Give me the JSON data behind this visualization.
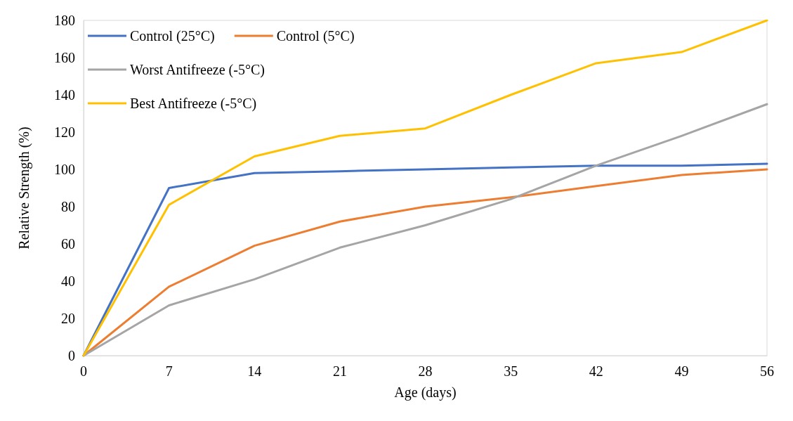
{
  "chart_data": {
    "type": "line",
    "xlabel": "Age (days)",
    "ylabel": "Relative Strength (%)",
    "x": [
      0,
      7,
      14,
      21,
      28,
      35,
      42,
      49,
      56
    ],
    "xlim": [
      0,
      56
    ],
    "xticks": [
      0,
      7,
      14,
      21,
      28,
      35,
      42,
      49,
      56
    ],
    "ylim": [
      0,
      180
    ],
    "yticks": [
      0,
      20,
      40,
      60,
      80,
      100,
      120,
      140,
      160,
      180
    ],
    "grid": false,
    "legend": "top left",
    "marker": "none",
    "line_style": "solid",
    "series": [
      {
        "name": "Control (25°C)",
        "color": "#4472c4",
        "values": [
          0,
          90,
          98,
          99,
          100,
          101,
          102,
          102,
          103
        ]
      },
      {
        "name": "Control (5°C)",
        "color": "#ed7d31",
        "values": [
          0,
          37,
          59,
          72,
          80,
          85,
          91,
          97,
          100
        ]
      },
      {
        "name": "Worst Antifreeze (-5°C)",
        "color": "#a5a5a5",
        "values": [
          0,
          27,
          41,
          58,
          70,
          84,
          102,
          118,
          135
        ]
      },
      {
        "name": "Best Antifreeze (-5°C)",
        "color": "#ffc000",
        "values": [
          0,
          81,
          107,
          118,
          122,
          140,
          157,
          163,
          180
        ]
      }
    ]
  }
}
